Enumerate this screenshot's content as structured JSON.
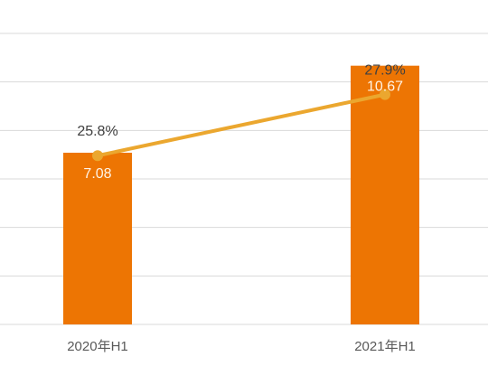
{
  "chart_data": {
    "type": "bar",
    "categories": [
      "2020年H1",
      "2021年H1"
    ],
    "series": [
      {
        "type": "bar",
        "values": [
          7.08,
          10.67
        ],
        "labels": [
          "7.08",
          "10.67"
        ],
        "color": "#ED7503"
      },
      {
        "type": "line",
        "values": [
          25.8,
          27.9
        ],
        "labels": [
          "25.8%",
          "27.9%"
        ],
        "color": "#EBA72F"
      }
    ],
    "bar_axis": {
      "ylim": [
        0,
        12
      ]
    },
    "line_axis": {
      "ylim": [
        20,
        30
      ]
    },
    "grid": true,
    "legend": "none",
    "colors": {
      "grid": "#D9D9D9",
      "axis_text": "#595959",
      "line_label_text": "#404040",
      "bar_label_text": "#FFF4E6"
    }
  }
}
